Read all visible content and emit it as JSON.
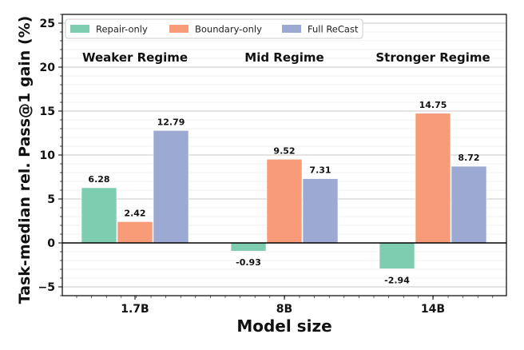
{
  "chart_data": {
    "type": "bar",
    "categories": [
      "1.7B",
      "8B",
      "14B"
    ],
    "series": [
      {
        "name": "Repair-only",
        "color": "#7fcdb1",
        "values": [
          6.28,
          -0.93,
          -2.94
        ]
      },
      {
        "name": "Boundary-only",
        "color": "#f89b79",
        "values": [
          2.42,
          9.52,
          14.75
        ]
      },
      {
        "name": "Full ReCast",
        "color": "#9ba9d3",
        "values": [
          12.79,
          7.31,
          8.72
        ]
      }
    ],
    "data_labels": [
      [
        "6.28",
        "-0.93",
        "-2.94"
      ],
      [
        "2.42",
        "9.52",
        "14.75"
      ],
      [
        "12.79",
        "7.31",
        "8.72"
      ]
    ],
    "annotations": [
      "Weaker Regime",
      "Mid Regime",
      "Stronger Regime"
    ],
    "xlabel": "Model size",
    "ylabel": "Task-median rel. Pass@1 gain (%)",
    "ylim": [
      -6,
      26
    ],
    "yticks": [
      -5,
      0,
      5,
      10,
      15,
      20,
      25
    ],
    "ytick_labels": [
      "−5",
      "0",
      "5",
      "10",
      "15",
      "20",
      "25"
    ],
    "grid": true,
    "legend_position": "top-left"
  }
}
